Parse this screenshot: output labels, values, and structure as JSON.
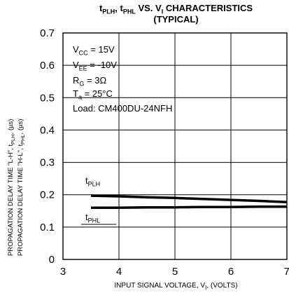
{
  "chart_data": {
    "type": "line",
    "title_line1": {
      "p1": "t",
      "s1": "PLH",
      "p2": ", t",
      "s2": "PHL",
      "p3": " VS. V",
      "s3": "I",
      "p4": " CHARACTERISTICS"
    },
    "title_line2": "(TYPICAL)",
    "ylabel_line1": {
      "p1": "PROPAGATION DELAY TIME \"L-H\", t",
      "s1": "PLH",
      "p2": ", (µs)"
    },
    "ylabel_line2": {
      "p1": "PROPAGATION DELAY TIME \"H-L\", t",
      "s1": "PHL",
      "p2": ", (µs)"
    },
    "xlabel": {
      "p1": "INPUT SIGNAL VOLTAGE, V",
      "s1": "I",
      "p2": ", (VOLTS)"
    },
    "xlim": [
      3,
      7
    ],
    "ylim": [
      0,
      0.7
    ],
    "xticks": [
      "3",
      "4",
      "5",
      "6",
      "7"
    ],
    "yticks": [
      "0",
      "0.1",
      "0.2",
      "0.3",
      "0.4",
      "0.5",
      "0.6",
      "0.7"
    ],
    "grid": true,
    "conditions": [
      {
        "p1": "V",
        "s1": "CC",
        "p2": " = 15V"
      },
      {
        "p1": "V",
        "s1": "EE",
        "p2": " = -10V"
      },
      {
        "p1": "R",
        "s1": "G",
        "p2": " = 3Ω"
      },
      {
        "p1": "T",
        "s1": "a",
        "p2": " = 25°C"
      },
      {
        "p1": "Load: CM400DU-24NFH",
        "s1": "",
        "p2": ""
      }
    ],
    "series": [
      {
        "name": "tPLH",
        "label_main": "t",
        "label_sub": "PLH",
        "x": [
          3.5,
          4.0,
          4.5,
          5.0,
          5.5,
          6.0,
          6.5,
          7.0
        ],
        "y": [
          0.197,
          0.195,
          0.192,
          0.19,
          0.187,
          0.184,
          0.181,
          0.177
        ]
      },
      {
        "name": "tPHL",
        "label_main": "t",
        "label_sub": "PHL",
        "x": [
          3.5,
          4.0,
          4.5,
          5.0,
          5.5,
          6.0,
          6.5,
          7.0
        ],
        "y": [
          0.16,
          0.16,
          0.161,
          0.161,
          0.162,
          0.162,
          0.163,
          0.163
        ]
      }
    ]
  }
}
